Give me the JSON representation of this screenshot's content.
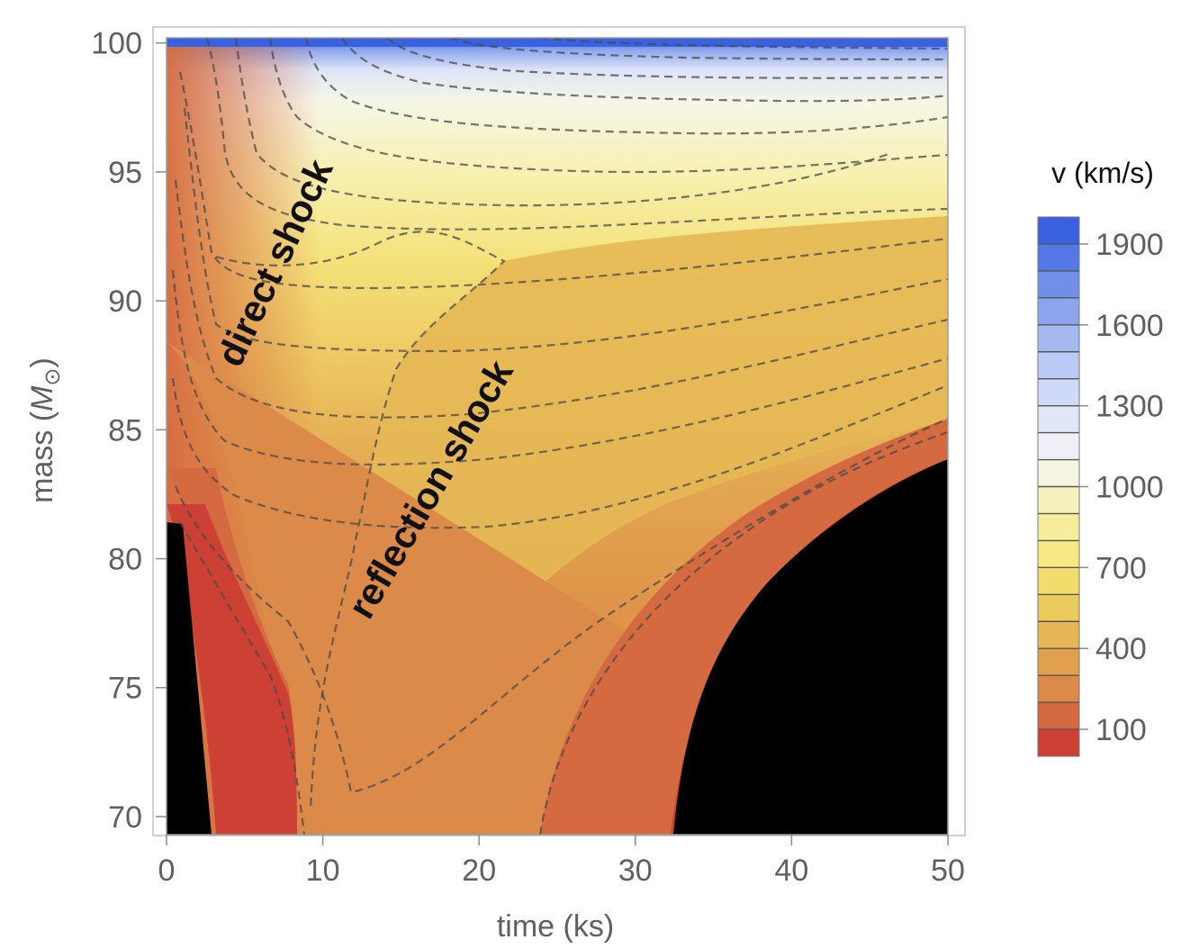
{
  "chart_data": {
    "type": "heatmap",
    "subtype": "contour",
    "xlabel": "time (ks)",
    "ylabel_main": "mass (",
    "ylabel_symbol": "M",
    "ylabel_sub": "⊙",
    "ylabel_close": ")",
    "xlim": [
      0,
      50
    ],
    "ylim": [
      69.3,
      100.2
    ],
    "x_ticks": [
      0,
      10,
      20,
      30,
      40,
      50
    ],
    "y_ticks": [
      70,
      75,
      80,
      85,
      90,
      95,
      100
    ],
    "grid": false,
    "colorbar": {
      "title": "v (km/s)",
      "range": [
        0,
        2000
      ],
      "tick_values": [
        100,
        400,
        700,
        1000,
        1300,
        1600,
        1900
      ],
      "tick_labels": [
        "100",
        "400",
        "700",
        "1000",
        "1300",
        "1600",
        "1900"
      ],
      "levels": [
        0,
        100,
        200,
        300,
        400,
        500,
        600,
        700,
        800,
        900,
        1000,
        1100,
        1200,
        1300,
        1400,
        1500,
        1600,
        1700,
        1800,
        1900,
        2000
      ],
      "colors": [
        "#cc4133",
        "#d56a40",
        "#dc8a4a",
        "#e0a04e",
        "#e6b855",
        "#eccb5d",
        "#f2dc6c",
        "#f6e882",
        "#f7ee9d",
        "#f7f2bd",
        "#f5f6e2",
        "#eef0f6",
        "#e1e7f8",
        "#cfdaf8",
        "#bccbf6",
        "#a6baf2",
        "#8ca6ee",
        "#7090e8",
        "#5478e4",
        "#3a62e0"
      ]
    },
    "annotations": [
      {
        "text": "direct shock",
        "x": 5.2,
        "y": 91.7
      },
      {
        "text": "reflection shock",
        "x": 16.5,
        "y": 84.2
      }
    ],
    "regions": [
      {
        "name": "black-core-left",
        "value": "v < 0"
      },
      {
        "name": "black-core-right",
        "value": "v < 0"
      }
    ]
  }
}
